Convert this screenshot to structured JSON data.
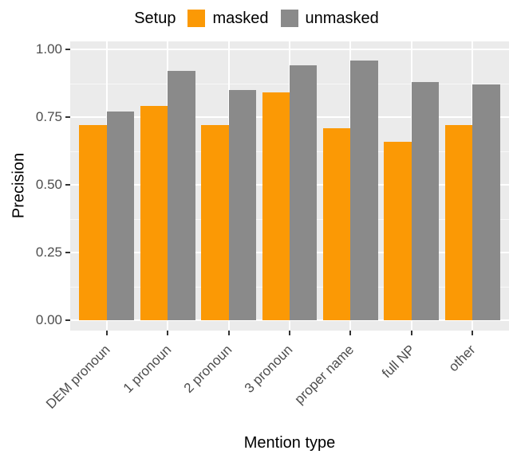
{
  "chart_data": {
    "type": "bar",
    "title": "",
    "legend_title": "Setup",
    "legend_position": "top",
    "xlabel": "Mention type",
    "ylabel": "Precision",
    "categories": [
      "DEM pronoun",
      "1 pronoun",
      "2 pronoun",
      "3 pronoun",
      "proper name",
      "full NP",
      "other"
    ],
    "series": [
      {
        "name": "masked",
        "color": "#FB9905",
        "values": [
          0.72,
          0.79,
          0.72,
          0.84,
          0.71,
          0.66,
          0.72
        ]
      },
      {
        "name": "unmasked",
        "color": "#8A8A8A",
        "values": [
          0.77,
          0.92,
          0.85,
          0.94,
          0.96,
          0.88,
          0.87
        ]
      }
    ],
    "ylim": [
      0,
      1
    ],
    "grid": true,
    "y_ticks": [
      {
        "value": 0,
        "label": "0.00"
      },
      {
        "value": 0.25,
        "label": "0.25"
      },
      {
        "value": 0.5,
        "label": "0.50"
      },
      {
        "value": 0.75,
        "label": "0.75"
      },
      {
        "value": 1,
        "label": "1.00"
      }
    ],
    "y_minor_ticks": [
      0.125,
      0.375,
      0.625,
      0.875
    ],
    "colors": {
      "panel_bg": "#EBEBEB",
      "grid": "#FFFFFF",
      "axis_text": "#4D4D4D",
      "text": "#000000"
    }
  }
}
